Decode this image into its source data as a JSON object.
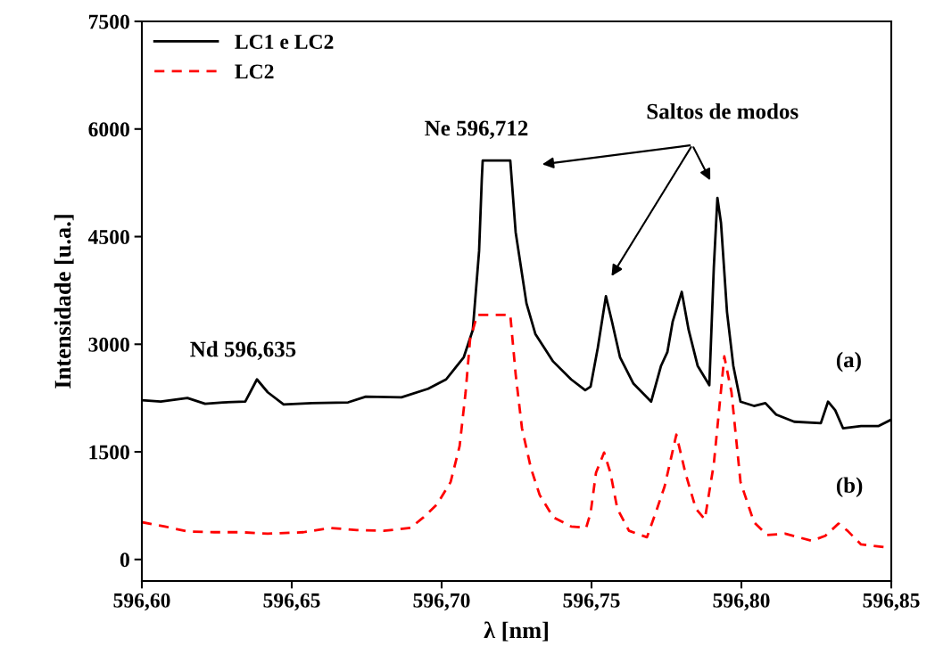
{
  "chart_data": {
    "type": "line",
    "xlabel": "λ [nm]",
    "ylabel": "Intensidade [u.a.]",
    "xlim": [
      596.6,
      596.85
    ],
    "xticks": [
      {
        "value": 596.6,
        "label": "596,60"
      },
      {
        "value": 596.65,
        "label": "596,65"
      },
      {
        "value": 596.7,
        "label": "596,70"
      },
      {
        "value": 596.75,
        "label": "596,75"
      },
      {
        "value": 596.8,
        "label": "596,80"
      },
      {
        "value": 596.85,
        "label": "596,85"
      }
    ],
    "ylim": [
      -300,
      7500
    ],
    "yticks": [
      0,
      1500,
      3000,
      4500,
      6000,
      7500
    ],
    "grid": false,
    "legend": "top left",
    "annotations": [
      "Nd 596,635",
      "Ne 596,712",
      "Saltos de modos",
      "(a)",
      "(b)"
    ],
    "series": [
      {
        "name": "LC1 e LC2",
        "color": "#000000",
        "line_style": "solid",
        "x": [
          596.6,
          596.6063,
          596.6152,
          596.6211,
          596.6271,
          596.6345,
          596.6384,
          596.642,
          596.6473,
          596.6568,
          596.6688,
          596.6747,
          596.6866,
          596.6955,
          596.7015,
          596.7074,
          596.7104,
          596.7125,
          596.7134,
          596.7137,
          596.7229,
          596.7247,
          596.7283,
          596.7313,
          596.7372,
          596.7432,
          596.7479,
          596.7497,
          596.7521,
          596.7548,
          596.7568,
          596.7595,
          596.764,
          596.7699,
          596.7732,
          596.7753,
          596.7771,
          596.7801,
          596.7824,
          596.7854,
          596.7893,
          596.7908,
          596.792,
          596.7932,
          596.7952,
          596.7973,
          596.7997,
          596.8042,
          596.808,
          596.8116,
          596.8176,
          596.8265,
          596.8289,
          596.8313,
          596.8339,
          596.8399,
          596.8458,
          596.85
        ],
        "values": [
          2220,
          2200,
          2250,
          2170,
          2190,
          2200,
          2510,
          2330,
          2160,
          2180,
          2190,
          2270,
          2260,
          2380,
          2510,
          2820,
          3200,
          4300,
          5300,
          5560,
          5560,
          4560,
          3570,
          3140,
          2760,
          2510,
          2360,
          2410,
          2950,
          3670,
          3320,
          2820,
          2450,
          2200,
          2700,
          2890,
          3320,
          3730,
          3200,
          2700,
          2430,
          4070,
          5040,
          4690,
          3450,
          2700,
          2200,
          2140,
          2180,
          2020,
          1920,
          1900,
          2200,
          2080,
          1830,
          1860,
          1860,
          1950
        ]
      },
      {
        "name": "LC2",
        "color": "#ff0000",
        "line_style": "dashed",
        "x": [
          596.6,
          596.6077,
          596.6152,
          596.6241,
          596.633,
          596.642,
          596.6539,
          596.6628,
          596.6717,
          596.6807,
          596.6896,
          596.694,
          596.6985,
          596.703,
          596.706,
          596.708,
          596.7095,
          596.7119,
          596.7229,
          596.7247,
          596.7268,
          596.7298,
          596.7327,
          596.7372,
          596.7432,
          596.7482,
          596.7497,
          596.7515,
          596.7542,
          596.7563,
          596.7586,
          596.7625,
          596.7685,
          596.7714,
          596.7744,
          596.7783,
          596.7813,
          596.7848,
          596.7878,
          596.7908,
          596.7943,
          596.7967,
          596.7997,
          596.8042,
          596.8086,
          596.8146,
          596.8235,
          596.828,
          596.8324,
          596.8354,
          596.8399,
          596.85
        ],
        "values": [
          520,
          460,
          390,
          380,
          380,
          360,
          380,
          440,
          410,
          400,
          440,
          590,
          770,
          1080,
          1580,
          2330,
          3070,
          3410,
          3410,
          2580,
          1830,
          1270,
          900,
          590,
          460,
          440,
          650,
          1210,
          1490,
          1210,
          710,
          400,
          310,
          650,
          1020,
          1740,
          1210,
          710,
          560,
          1330,
          2830,
          2330,
          1080,
          520,
          340,
          360,
          260,
          330,
          500,
          400,
          210,
          160
        ]
      }
    ]
  }
}
